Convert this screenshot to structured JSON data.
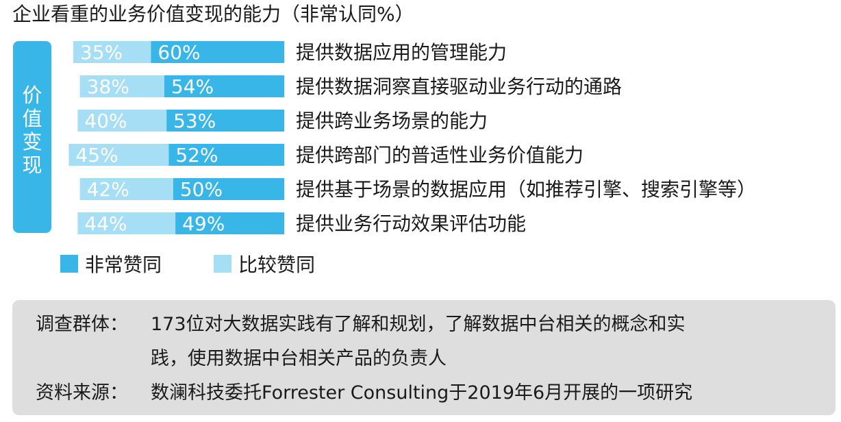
{
  "title": "企业看重的业务价值变现的能力（非常认同%）",
  "side_label": "价值变现",
  "legend": {
    "very": {
      "label": "非常赞同",
      "color": "#39b6e8"
    },
    "somewhat": {
      "label": "比较赞同",
      "color": "#a6def5"
    }
  },
  "chart_data": {
    "type": "bar",
    "orientation": "horizontal",
    "stacked": true,
    "title": "企业看重的业务价值变现的能力（非常认同%）",
    "categories": [
      "提供数据应用的管理能力",
      "提供数据洞察直接驱动业务行动的通路",
      "提供跨业务场景的能力",
      "提供跨部门的普适性业务价值能力",
      "提供基于场景的数据应用（如推荐引擎、搜索引擎等）",
      "提供业务行动效果评估功能"
    ],
    "series": [
      {
        "name": "非常赞同",
        "values": [
          60,
          54,
          53,
          52,
          50,
          49
        ],
        "labels": [
          "60%",
          "54%",
          "53%",
          "52%",
          "50%",
          "49%"
        ],
        "color": "#39b6e8"
      },
      {
        "name": "比较赞同",
        "values": [
          35,
          38,
          40,
          45,
          42,
          44
        ],
        "labels": [
          "35%",
          "38%",
          "40%",
          "45%",
          "42%",
          "44%"
        ],
        "color": "#a6def5"
      }
    ],
    "legend_position": "bottom-left",
    "grid": false
  },
  "notes": [
    {
      "key": "调查群体：",
      "lines": [
        "173位对大数据实践有了解和规划，了解数据中台相关的概念和实",
        "践，使用数据中台相关产品的负责人"
      ]
    },
    {
      "key": "资料来源：",
      "lines": [
        "数澜科技委托Forrester Consulting于2019年6月开展的一项研究"
      ]
    }
  ]
}
